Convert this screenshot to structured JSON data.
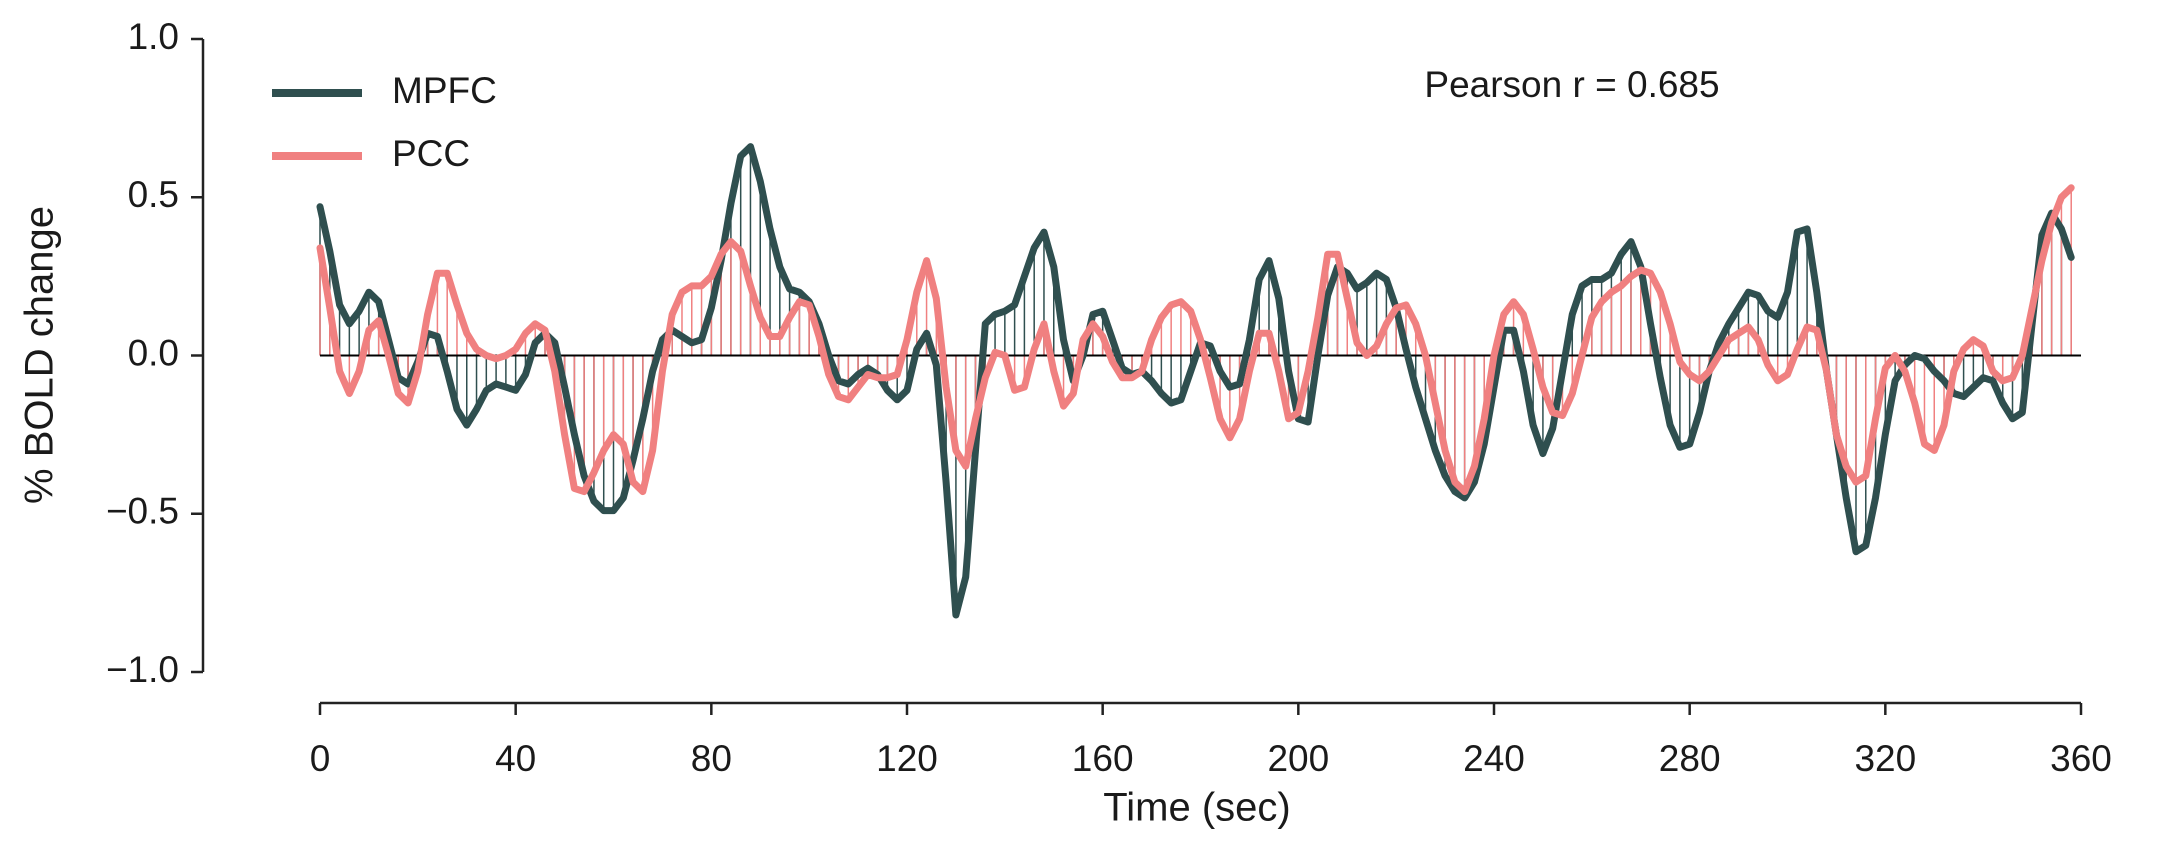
{
  "chart_data": {
    "type": "line",
    "annotation": "Pearson r = 0.685",
    "xlabel": "Time (sec)",
    "ylabel": "% BOLD change",
    "x": [
      0,
      2,
      4,
      6,
      8,
      10,
      12,
      14,
      16,
      18,
      20,
      22,
      24,
      26,
      28,
      30,
      32,
      34,
      36,
      38,
      40,
      42,
      44,
      46,
      48,
      50,
      52,
      54,
      56,
      58,
      60,
      62,
      64,
      66,
      68,
      70,
      72,
      74,
      76,
      78,
      80,
      82,
      84,
      86,
      88,
      90,
      92,
      94,
      96,
      98,
      100,
      102,
      104,
      106,
      108,
      110,
      112,
      114,
      116,
      118,
      120,
      122,
      124,
      126,
      128,
      130,
      132,
      134,
      136,
      138,
      140,
      142,
      144,
      146,
      148,
      150,
      152,
      154,
      156,
      158,
      160,
      162,
      164,
      166,
      168,
      170,
      172,
      174,
      176,
      178,
      180,
      182,
      184,
      186,
      188,
      190,
      192,
      194,
      196,
      198,
      200,
      202,
      204,
      206,
      208,
      210,
      212,
      214,
      216,
      218,
      220,
      222,
      224,
      226,
      228,
      230,
      232,
      234,
      236,
      238,
      240,
      242,
      244,
      246,
      248,
      250,
      252,
      254,
      256,
      258,
      260,
      262,
      264,
      266,
      268,
      270,
      272,
      274,
      276,
      278,
      280,
      282,
      284,
      286,
      288,
      290,
      292,
      294,
      296,
      298,
      300,
      302,
      304,
      306,
      308,
      310,
      312,
      314,
      316,
      318,
      320,
      322,
      324,
      326,
      328,
      330,
      332,
      334,
      336,
      338,
      340,
      342,
      344,
      346,
      348,
      350,
      352,
      354,
      356,
      358
    ],
    "series": [
      {
        "name": "MPFC",
        "color": "#2f4f4f",
        "values": [
          0.47,
          0.33,
          0.16,
          0.1,
          0.14,
          0.2,
          0.17,
          0.05,
          -0.07,
          -0.09,
          -0.02,
          0.07,
          0.06,
          -0.05,
          -0.17,
          -0.22,
          -0.17,
          -0.11,
          -0.09,
          -0.1,
          -0.11,
          -0.06,
          0.04,
          0.07,
          0.04,
          -0.1,
          -0.25,
          -0.38,
          -0.46,
          -0.49,
          -0.49,
          -0.45,
          -0.33,
          -0.2,
          -0.05,
          0.05,
          0.08,
          0.06,
          0.04,
          0.05,
          0.15,
          0.3,
          0.48,
          0.63,
          0.66,
          0.55,
          0.4,
          0.28,
          0.21,
          0.2,
          0.17,
          0.1,
          0.0,
          -0.08,
          -0.09,
          -0.06,
          -0.04,
          -0.06,
          -0.11,
          -0.14,
          -0.11,
          0.02,
          0.07,
          -0.03,
          -0.4,
          -0.82,
          -0.7,
          -0.3,
          0.1,
          0.13,
          0.14,
          0.16,
          0.25,
          0.34,
          0.39,
          0.28,
          0.05,
          -0.08,
          0.0,
          0.13,
          0.14,
          0.05,
          -0.04,
          -0.06,
          -0.05,
          -0.08,
          -0.12,
          -0.15,
          -0.14,
          -0.05,
          0.04,
          0.03,
          -0.05,
          -0.1,
          -0.09,
          0.05,
          0.24,
          0.3,
          0.18,
          -0.05,
          -0.2,
          -0.21,
          0.0,
          0.19,
          0.28,
          0.26,
          0.21,
          0.23,
          0.26,
          0.24,
          0.15,
          0.02,
          -0.1,
          -0.2,
          -0.3,
          -0.38,
          -0.43,
          -0.45,
          -0.4,
          -0.28,
          -0.1,
          0.08,
          0.08,
          -0.05,
          -0.22,
          -0.31,
          -0.23,
          -0.05,
          0.13,
          0.22,
          0.24,
          0.24,
          0.26,
          0.32,
          0.36,
          0.28,
          0.1,
          -0.07,
          -0.22,
          -0.29,
          -0.28,
          -0.18,
          -0.05,
          0.04,
          0.1,
          0.15,
          0.2,
          0.19,
          0.14,
          0.12,
          0.2,
          0.39,
          0.4,
          0.2,
          -0.05,
          -0.25,
          -0.45,
          -0.62,
          -0.6,
          -0.45,
          -0.25,
          -0.08,
          -0.03,
          0.0,
          -0.01,
          -0.05,
          -0.08,
          -0.12,
          -0.13,
          -0.1,
          -0.07,
          -0.08,
          -0.15,
          -0.2,
          -0.18,
          0.1,
          0.38,
          0.45,
          0.4,
          0.31
        ]
      },
      {
        "name": "PCC",
        "color": "#f08080",
        "values": [
          0.34,
          0.15,
          -0.05,
          -0.12,
          -0.05,
          0.08,
          0.11,
          0.0,
          -0.12,
          -0.15,
          -0.05,
          0.13,
          0.26,
          0.26,
          0.16,
          0.07,
          0.02,
          0.0,
          -0.01,
          0.0,
          0.02,
          0.07,
          0.1,
          0.08,
          -0.05,
          -0.25,
          -0.42,
          -0.43,
          -0.37,
          -0.3,
          -0.25,
          -0.28,
          -0.4,
          -0.43,
          -0.3,
          -0.05,
          0.13,
          0.2,
          0.22,
          0.22,
          0.25,
          0.32,
          0.36,
          0.33,
          0.22,
          0.12,
          0.06,
          0.06,
          0.12,
          0.17,
          0.16,
          0.06,
          -0.06,
          -0.13,
          -0.14,
          -0.1,
          -0.06,
          -0.07,
          -0.07,
          -0.06,
          0.05,
          0.2,
          0.3,
          0.18,
          -0.1,
          -0.3,
          -0.35,
          -0.2,
          -0.07,
          0.01,
          0.0,
          -0.11,
          -0.1,
          0.02,
          0.1,
          -0.05,
          -0.16,
          -0.12,
          0.05,
          0.1,
          0.06,
          -0.02,
          -0.07,
          -0.07,
          -0.05,
          0.05,
          0.12,
          0.16,
          0.17,
          0.14,
          0.05,
          -0.07,
          -0.2,
          -0.26,
          -0.2,
          -0.05,
          0.07,
          0.07,
          -0.05,
          -0.2,
          -0.18,
          -0.05,
          0.12,
          0.32,
          0.32,
          0.18,
          0.04,
          0.0,
          0.03,
          0.1,
          0.15,
          0.16,
          0.1,
          0.0,
          -0.15,
          -0.3,
          -0.4,
          -0.43,
          -0.35,
          -0.2,
          0.0,
          0.13,
          0.17,
          0.13,
          0.02,
          -0.1,
          -0.18,
          -0.19,
          -0.12,
          0.0,
          0.12,
          0.17,
          0.2,
          0.22,
          0.25,
          0.27,
          0.26,
          0.2,
          0.1,
          -0.02,
          -0.06,
          -0.08,
          -0.05,
          0.0,
          0.05,
          0.07,
          0.09,
          0.05,
          -0.03,
          -0.08,
          -0.06,
          0.02,
          0.09,
          0.08,
          -0.05,
          -0.25,
          -0.35,
          -0.4,
          -0.38,
          -0.2,
          -0.04,
          0.0,
          -0.05,
          -0.15,
          -0.28,
          -0.3,
          -0.22,
          -0.05,
          0.02,
          0.05,
          0.03,
          -0.05,
          -0.08,
          -0.07,
          0.0,
          0.15,
          0.3,
          0.42,
          0.5,
          0.53
        ]
      }
    ],
    "xlim": [
      0,
      360
    ],
    "xticks": [
      0,
      40,
      80,
      120,
      160,
      200,
      240,
      280,
      320,
      360
    ],
    "ylim": [
      -1,
      1
    ],
    "yticks": [
      {
        "value": -1,
        "label": "−1.0"
      },
      {
        "value": -0.5,
        "label": "−0.5"
      },
      {
        "value": 0,
        "label": "0.0"
      },
      {
        "value": 0.5,
        "label": "0.5"
      },
      {
        "value": 1,
        "label": "1.0"
      }
    ],
    "legend": "upper left"
  }
}
